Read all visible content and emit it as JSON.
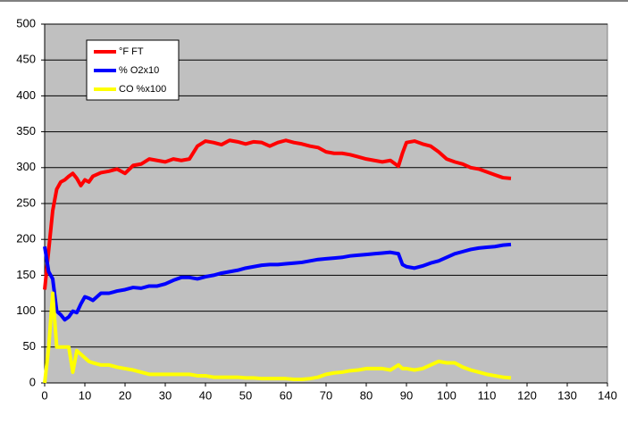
{
  "chart_data": {
    "type": "line",
    "x": [
      0,
      1,
      2,
      3,
      4,
      5,
      6,
      7,
      8,
      9,
      10,
      11,
      12,
      14,
      16,
      18,
      20,
      22,
      24,
      26,
      28,
      30,
      32,
      34,
      36,
      38,
      40,
      42,
      44,
      46,
      48,
      50,
      52,
      54,
      56,
      58,
      60,
      62,
      64,
      66,
      68,
      70,
      72,
      74,
      76,
      78,
      80,
      82,
      84,
      86,
      88,
      89,
      90,
      92,
      94,
      96,
      98,
      100,
      102,
      104,
      106,
      108,
      110,
      112,
      114,
      116
    ],
    "series": [
      {
        "name": "°F FT",
        "color": "#ff0000",
        "values": [
          130,
          185,
          240,
          270,
          280,
          283,
          288,
          292,
          285,
          275,
          283,
          280,
          288,
          293,
          295,
          298,
          292,
          303,
          305,
          312,
          310,
          308,
          312,
          310,
          312,
          330,
          337,
          335,
          332,
          338,
          336,
          333,
          336,
          335,
          330,
          335,
          338,
          335,
          333,
          330,
          328,
          322,
          320,
          320,
          318,
          315,
          312,
          310,
          308,
          310,
          302,
          320,
          335,
          337,
          333,
          330,
          322,
          312,
          308,
          305,
          300,
          298,
          294,
          290,
          286,
          285
        ]
      },
      {
        "name": "% O2x10",
        "color": "#0000ff",
        "values": [
          190,
          155,
          145,
          100,
          95,
          88,
          92,
          100,
          98,
          110,
          120,
          118,
          115,
          125,
          125,
          128,
          130,
          133,
          132,
          135,
          135,
          138,
          143,
          147,
          147,
          145,
          148,
          150,
          153,
          155,
          157,
          160,
          162,
          164,
          165,
          165,
          166,
          167,
          168,
          170,
          172,
          173,
          174,
          175,
          177,
          178,
          179,
          180,
          181,
          182,
          180,
          165,
          162,
          160,
          163,
          167,
          170,
          175,
          180,
          183,
          186,
          188,
          189,
          190,
          192,
          193
        ]
      },
      {
        "name": "CO %x100",
        "color": "#ffff00",
        "values": [
          0,
          50,
          125,
          50,
          50,
          50,
          50,
          15,
          45,
          40,
          35,
          30,
          28,
          25,
          25,
          22,
          20,
          18,
          15,
          12,
          12,
          12,
          12,
          12,
          12,
          10,
          10,
          8,
          8,
          8,
          8,
          7,
          7,
          6,
          6,
          6,
          6,
          5,
          5,
          6,
          8,
          12,
          14,
          15,
          17,
          18,
          20,
          20,
          20,
          18,
          25,
          20,
          20,
          18,
          20,
          25,
          30,
          28,
          28,
          22,
          18,
          15,
          12,
          10,
          8,
          7
        ]
      }
    ],
    "xlim": [
      0,
      140
    ],
    "xticks": [
      0,
      10,
      20,
      30,
      40,
      50,
      60,
      70,
      80,
      90,
      100,
      110,
      120,
      130,
      140
    ],
    "ylim": [
      0,
      500
    ],
    "yticks": [
      0,
      50,
      100,
      150,
      200,
      250,
      300,
      350,
      400,
      450,
      500
    ],
    "grid": true,
    "legend": "top-left"
  }
}
